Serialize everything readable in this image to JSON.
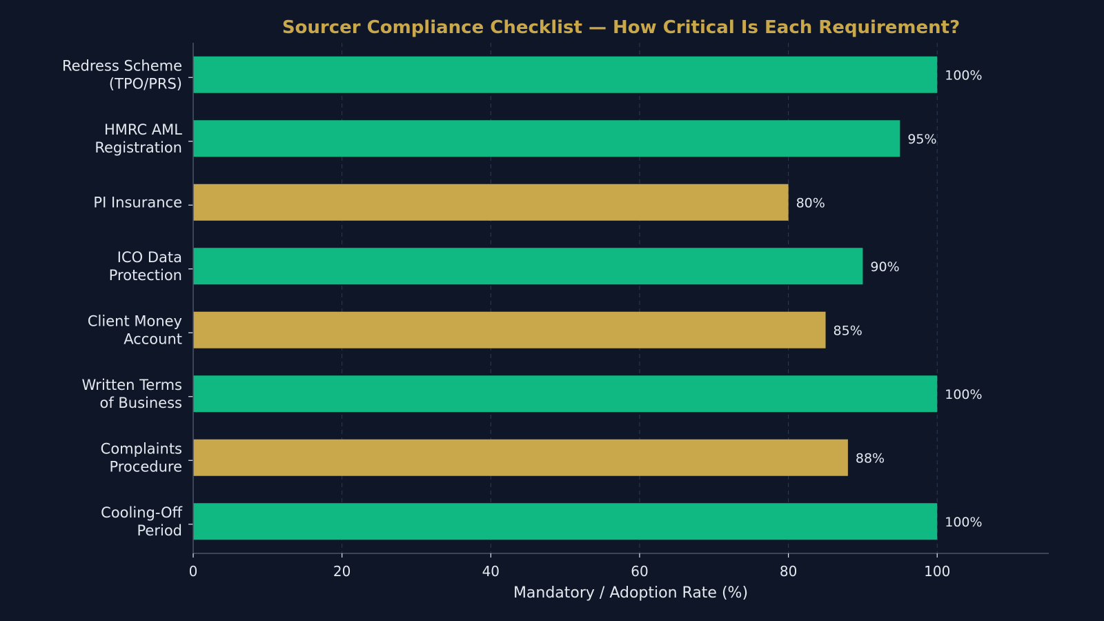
{
  "chart_data": {
    "type": "bar",
    "orientation": "horizontal",
    "title": "Sourcer Compliance Checklist — How Critical Is Each Requirement?",
    "xlabel": "Mandatory / Adoption Rate (%)",
    "ylabel": "",
    "xlim": [
      0,
      115
    ],
    "xticks": [
      0,
      20,
      40,
      60,
      80,
      100
    ],
    "grid": "vertical dashed",
    "categories": [
      [
        "Redress Scheme",
        "(TPO/PRS)"
      ],
      [
        "HMRC AML",
        "Registration"
      ],
      [
        "PI Insurance"
      ],
      [
        "ICO Data",
        "Protection"
      ],
      [
        "Client Money",
        "Account"
      ],
      [
        "Written Terms",
        "of Business"
      ],
      [
        "Complaints",
        "Procedure"
      ],
      [
        "Cooling-Off",
        "Period"
      ]
    ],
    "values": [
      100,
      95,
      80,
      90,
      85,
      100,
      88,
      100
    ],
    "value_labels": [
      "100%",
      "95%",
      "80%",
      "90%",
      "85%",
      "100%",
      "88%",
      "100%"
    ],
    "bar_colors": [
      "#10b981",
      "#10b981",
      "#c9a84c",
      "#10b981",
      "#c9a84c",
      "#10b981",
      "#c9a84c",
      "#10b981"
    ]
  },
  "colors": {
    "background": "#0e1628",
    "title": "#c9a84c",
    "text": "#e4e8ef",
    "axis": "#4a5568",
    "grid": "#2f3b52"
  }
}
